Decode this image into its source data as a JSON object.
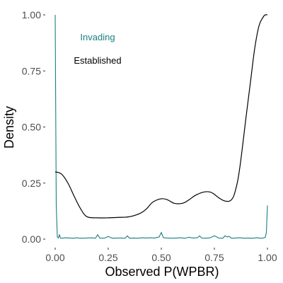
{
  "chart_data": {
    "type": "line",
    "title": "",
    "xlabel": "Observed P(WPBR)",
    "ylabel": "Density",
    "xlim": [
      0,
      1
    ],
    "ylim": [
      0,
      1
    ],
    "x_ticks": [
      "0.00",
      "0.25",
      "0.50",
      "0.75",
      "1.00"
    ],
    "y_ticks": [
      "0.00",
      "0.25",
      "0.50",
      "0.75",
      "1.00"
    ],
    "grid": false,
    "legend": "none",
    "annotations": [
      {
        "text": "Invading",
        "color": "#1a7f7f"
      },
      {
        "text": "Established",
        "color": "#000000"
      }
    ],
    "series": [
      {
        "name": "Invading",
        "color": "#1a7f7f",
        "x": [
          0.0,
          0.005,
          0.01,
          0.015,
          0.02,
          0.025,
          0.03,
          0.04,
          0.05,
          0.07,
          0.09,
          0.1,
          0.11,
          0.13,
          0.15,
          0.17,
          0.19,
          0.2,
          0.21,
          0.23,
          0.25,
          0.27,
          0.29,
          0.31,
          0.33,
          0.34,
          0.35,
          0.37,
          0.39,
          0.41,
          0.43,
          0.45,
          0.47,
          0.49,
          0.5,
          0.51,
          0.53,
          0.55,
          0.57,
          0.59,
          0.61,
          0.63,
          0.65,
          0.67,
          0.68,
          0.69,
          0.71,
          0.73,
          0.75,
          0.77,
          0.79,
          0.8,
          0.81,
          0.82,
          0.83,
          0.85,
          0.87,
          0.89,
          0.91,
          0.93,
          0.95,
          0.97,
          0.98,
          0.99,
          0.995,
          1.0
        ],
        "y": [
          1.0,
          0.15,
          0.01,
          0.005,
          0.02,
          0.005,
          0.004,
          0.005,
          0.006,
          0.005,
          0.004,
          0.006,
          0.005,
          0.004,
          0.005,
          0.006,
          0.004,
          0.02,
          0.005,
          0.004,
          0.012,
          0.004,
          0.005,
          0.005,
          0.004,
          0.015,
          0.004,
          0.005,
          0.004,
          0.006,
          0.005,
          0.006,
          0.005,
          0.01,
          0.03,
          0.006,
          0.005,
          0.004,
          0.005,
          0.006,
          0.004,
          0.008,
          0.005,
          0.006,
          0.015,
          0.005,
          0.004,
          0.006,
          0.015,
          0.005,
          0.004,
          0.015,
          0.01,
          0.012,
          0.004,
          0.005,
          0.006,
          0.004,
          0.005,
          0.004,
          0.006,
          0.004,
          0.005,
          0.008,
          0.03,
          0.15
        ]
      },
      {
        "name": "Established",
        "color": "#000000",
        "x": [
          0.0,
          0.03,
          0.06,
          0.09,
          0.12,
          0.15,
          0.2,
          0.25,
          0.3,
          0.35,
          0.4,
          0.43,
          0.46,
          0.5,
          0.53,
          0.56,
          0.6,
          0.63,
          0.66,
          0.7,
          0.73,
          0.75,
          0.77,
          0.8,
          0.83,
          0.85,
          0.87,
          0.9,
          0.92,
          0.94,
          0.96,
          0.98,
          0.99,
          1.0
        ],
        "y": [
          0.3,
          0.29,
          0.25,
          0.19,
          0.135,
          0.1,
          0.095,
          0.095,
          0.097,
          0.1,
          0.115,
          0.135,
          0.165,
          0.18,
          0.175,
          0.16,
          0.16,
          0.175,
          0.195,
          0.21,
          0.21,
          0.2,
          0.185,
          0.17,
          0.175,
          0.22,
          0.32,
          0.55,
          0.7,
          0.85,
          0.95,
          0.99,
          1.0,
          1.0
        ]
      }
    ]
  }
}
